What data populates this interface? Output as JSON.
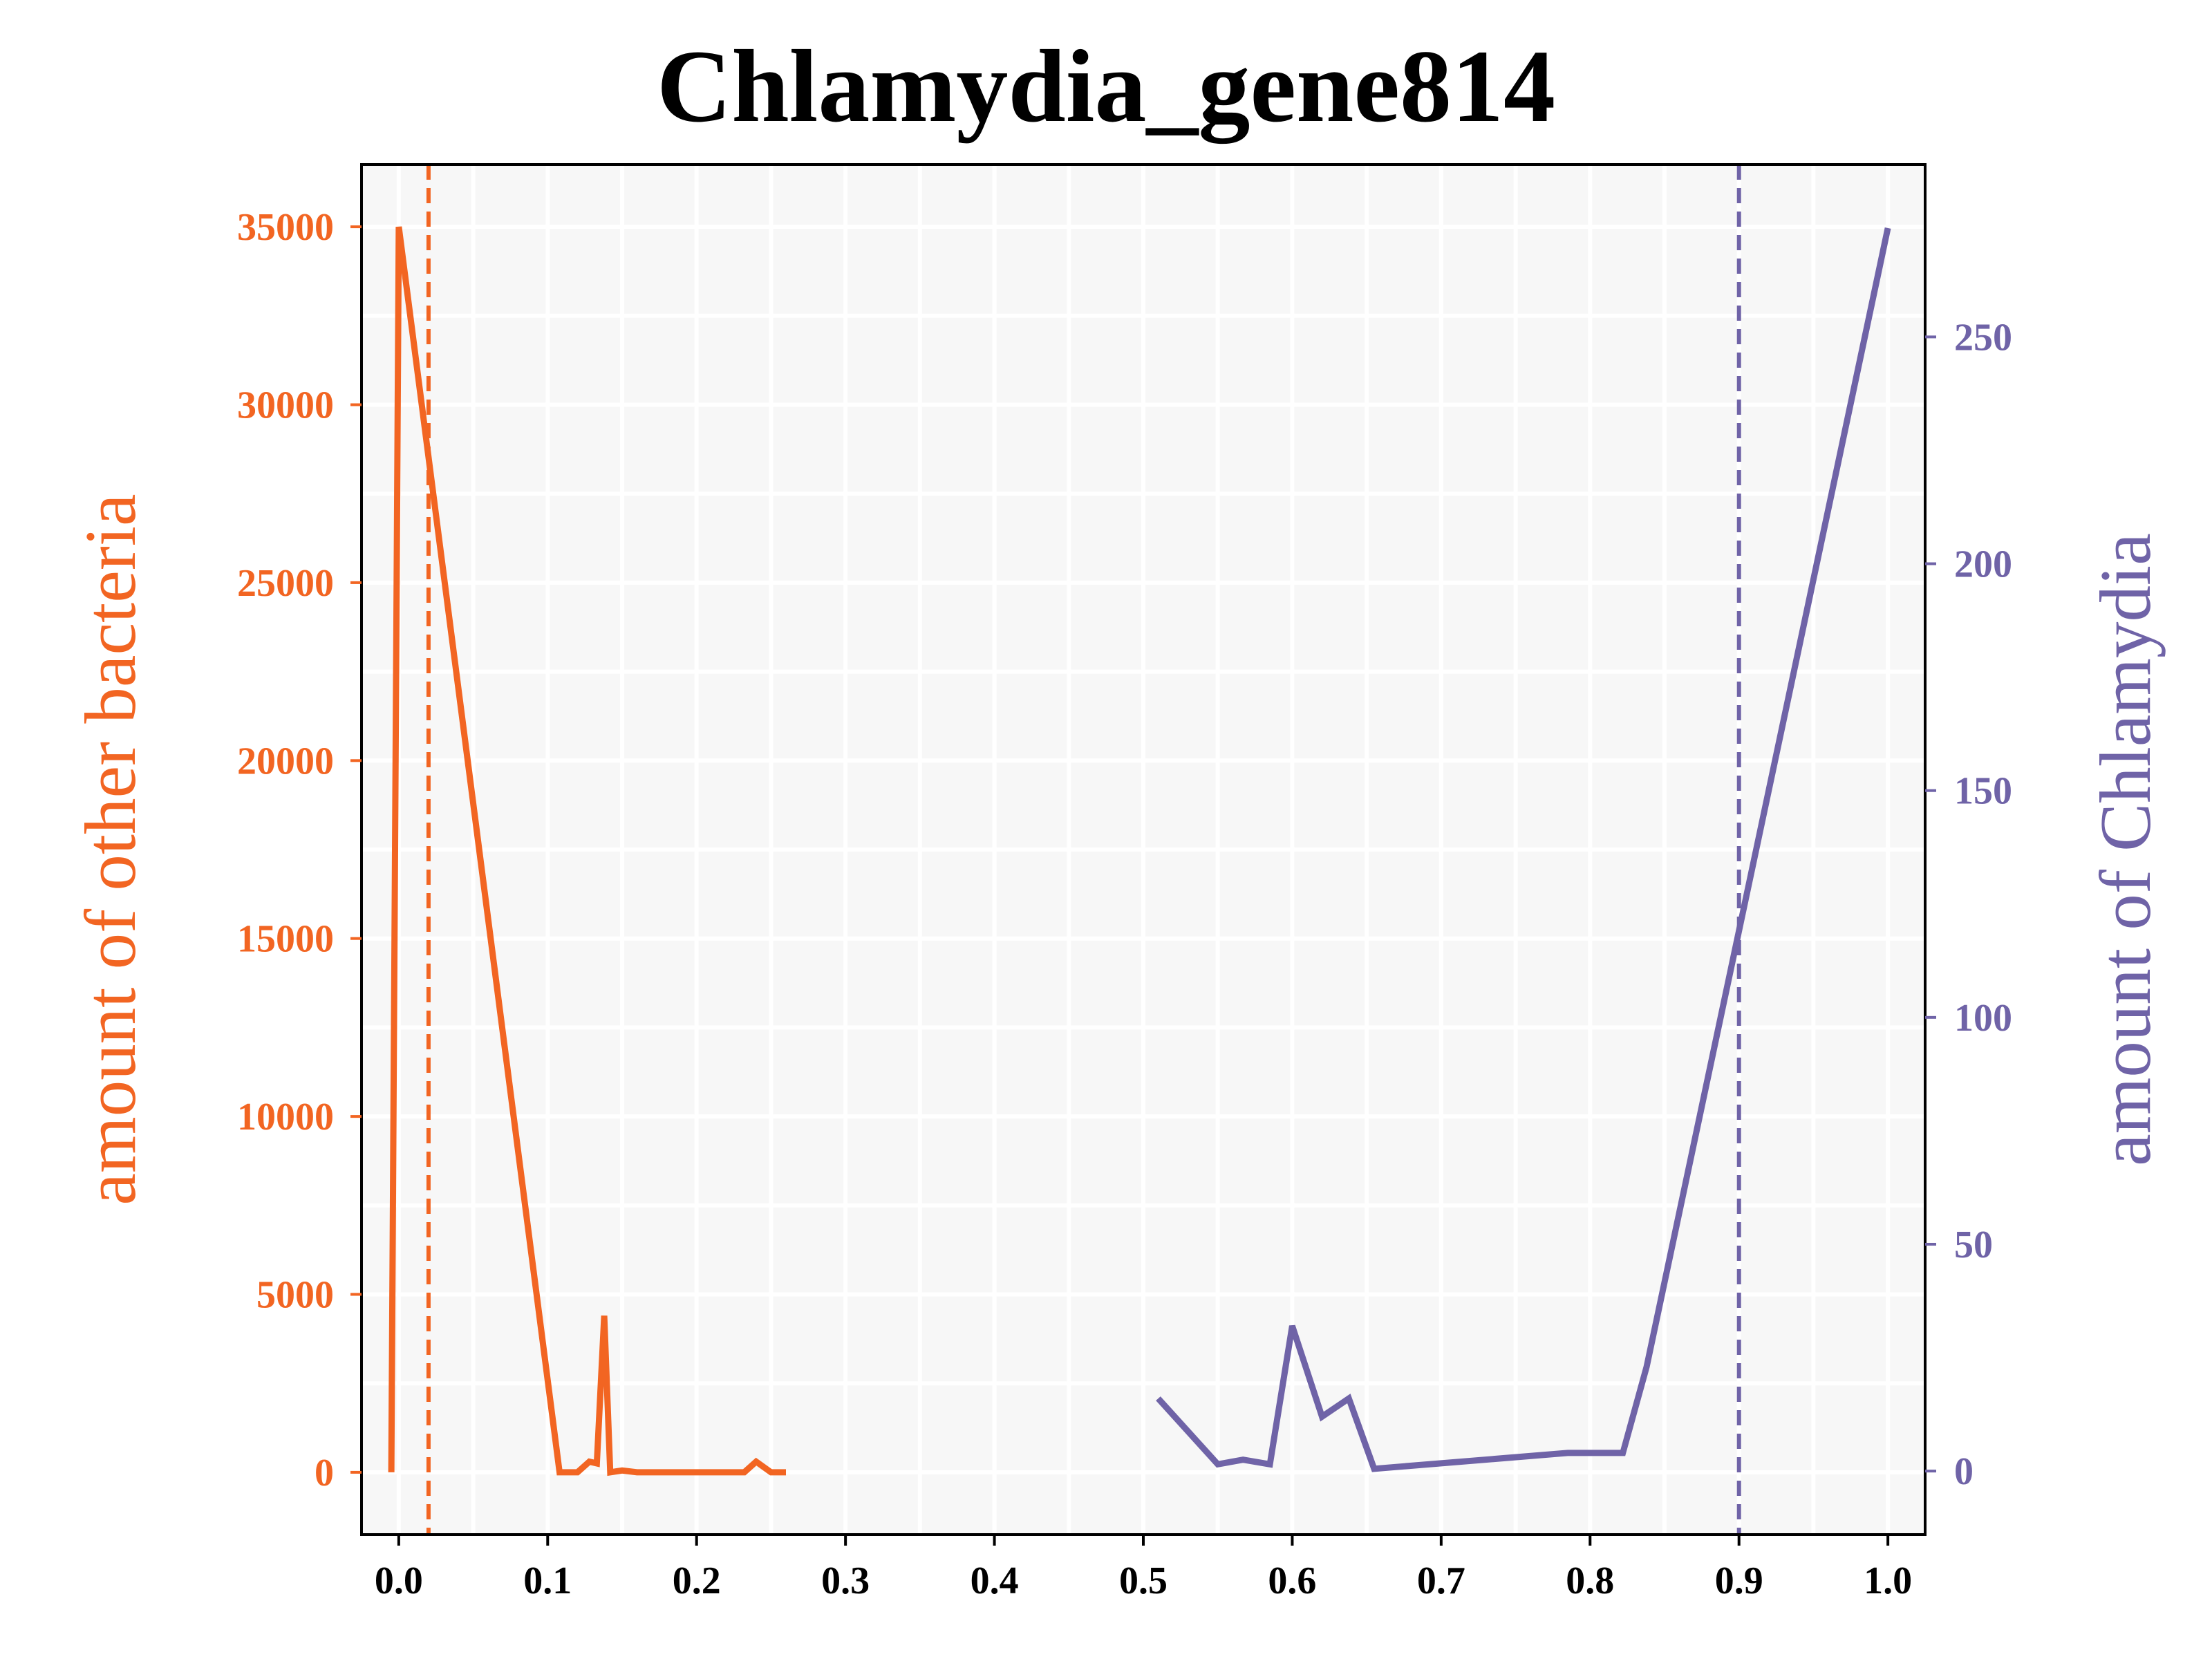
{
  "colors": {
    "left": "#f26522",
    "right": "#6f63a7",
    "plot_bg": "#f7f7f7",
    "grid": "#ffffff",
    "axis": "#000000"
  },
  "chart_data": {
    "type": "line",
    "title": "Chlamydia_gene814",
    "xlabel": "",
    "xlim": [
      -0.025,
      1.025
    ],
    "xticks": [
      "0.0",
      "0.1",
      "0.2",
      "0.3",
      "0.4",
      "0.5",
      "0.6",
      "0.7",
      "0.8",
      "0.9",
      "1.0"
    ],
    "xtick_values": [
      0.0,
      0.1,
      0.2,
      0.3,
      0.4,
      0.5,
      0.6,
      0.7,
      0.8,
      0.9,
      1.0
    ],
    "grid": true,
    "left_axis": {
      "label": "amount of other bacteria",
      "ylim": [
        -1750,
        36750
      ],
      "ticks": [
        "0",
        "5000",
        "10000",
        "15000",
        "20000",
        "25000",
        "30000",
        "35000"
      ],
      "tick_values": [
        0,
        5000,
        10000,
        15000,
        20000,
        25000,
        30000,
        35000
      ]
    },
    "right_axis": {
      "label": "amount of Chlamydia",
      "ylim": [
        -14,
        288
      ],
      "ticks": [
        "0",
        "50",
        "100",
        "150",
        "200",
        "250"
      ],
      "tick_values": [
        0,
        50,
        100,
        150,
        200,
        250
      ]
    },
    "series": [
      {
        "axis": "left",
        "color": "#f26522",
        "x": [
          -0.005,
          0.0,
          0.108,
          0.12,
          0.128,
          0.133,
          0.138,
          0.142,
          0.15,
          0.16,
          0.2,
          0.232,
          0.24,
          0.25,
          0.26
        ],
        "y": [
          0,
          35000,
          0,
          0,
          300,
          250,
          4400,
          0,
          50,
          0,
          0,
          0,
          300,
          0,
          0
        ]
      },
      {
        "axis": "right",
        "color": "#6f63a7",
        "x": [
          0.51,
          0.55,
          0.567,
          0.585,
          0.6,
          0.62,
          0.638,
          0.655,
          0.785,
          0.822,
          0.838,
          1.0
        ],
        "y": [
          16,
          1.5,
          2.5,
          1.5,
          32,
          12,
          16,
          0.5,
          4,
          4,
          23,
          274
        ]
      }
    ],
    "vlines": [
      {
        "axis": "left",
        "x": 0.02,
        "color": "#f26522",
        "style": "dashed"
      },
      {
        "axis": "right",
        "x": 0.9,
        "color": "#6f63a7",
        "style": "dashed"
      }
    ]
  }
}
